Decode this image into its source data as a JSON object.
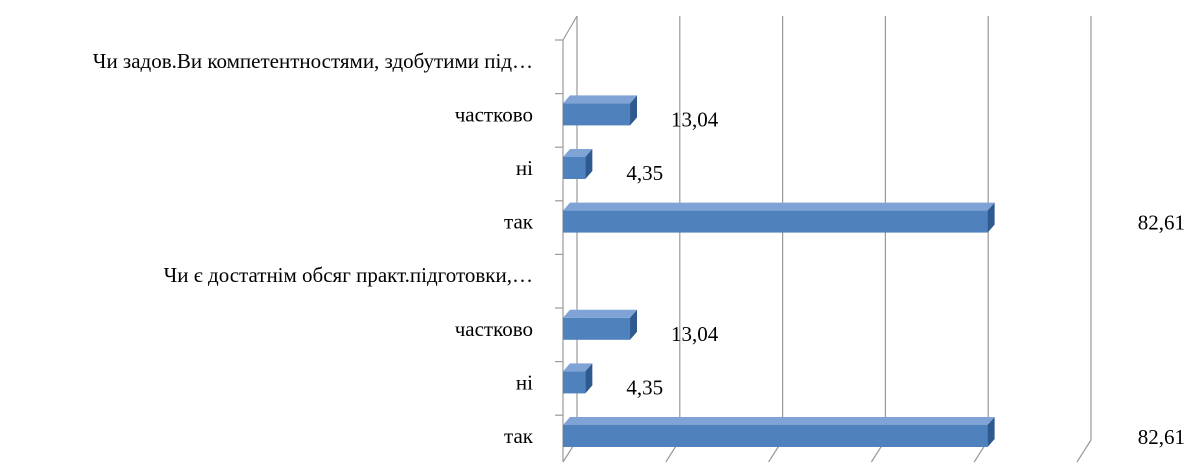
{
  "chart_data": {
    "type": "bar",
    "orientation": "horizontal",
    "style": "3d",
    "grid": true,
    "xlim": [
      0,
      100
    ],
    "bar_color": "#4F81BD",
    "categories": [
      "Чи задов.Ви компетентностями, здобутими під…",
      "частково",
      "ні",
      "так",
      "Чи є достатнім обсяг практ.підготовки,…",
      "частково",
      "ні",
      "так"
    ],
    "values": [
      null,
      13.04,
      4.35,
      82.61,
      null,
      13.04,
      4.35,
      82.61
    ],
    "data_labels": [
      "",
      "13,04",
      "4,35",
      "82,61",
      "",
      "13,04",
      "4,35",
      "82,61"
    ]
  }
}
